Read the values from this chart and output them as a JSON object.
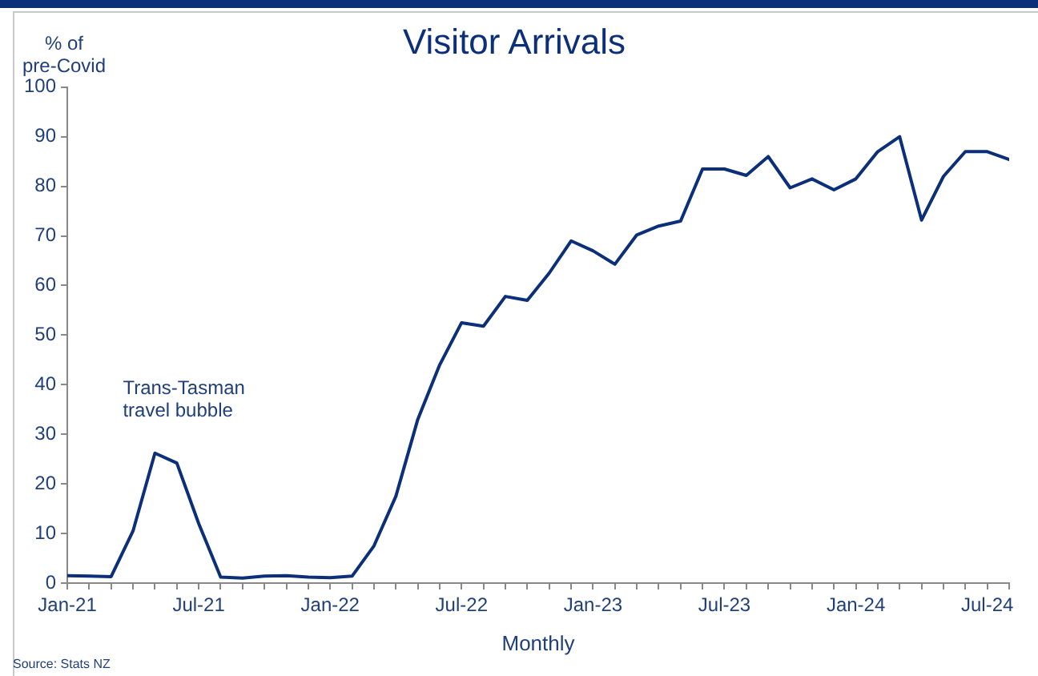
{
  "chart_data": {
    "type": "line",
    "title": "Visitor Arrivals",
    "ylabel": "% of pre-Covid",
    "xlabel": "Monthly",
    "x": [
      "2021-01",
      "2021-02",
      "2021-03",
      "2021-04",
      "2021-05",
      "2021-06",
      "2021-07",
      "2021-08",
      "2021-09",
      "2021-10",
      "2021-11",
      "2021-12",
      "2022-01",
      "2022-02",
      "2022-03",
      "2022-04",
      "2022-05",
      "2022-06",
      "2022-07",
      "2022-08",
      "2022-09",
      "2022-10",
      "2022-11",
      "2022-12",
      "2023-01",
      "2023-02",
      "2023-03",
      "2023-04",
      "2023-05",
      "2023-06",
      "2023-07",
      "2023-08",
      "2023-09",
      "2023-10",
      "2023-11",
      "2023-12",
      "2024-01",
      "2024-02",
      "2024-03",
      "2024-04",
      "2024-05",
      "2024-06",
      "2024-07",
      "2024-08"
    ],
    "series": [
      {
        "color": "#0b2f78",
        "values": [
          1.5,
          1.4,
          1.3,
          10.5,
          26.2,
          24.2,
          12,
          1.2,
          1.0,
          1.4,
          1.5,
          1.2,
          1.1,
          1.4,
          7.5,
          17.5,
          33,
          44,
          52.5,
          51.8,
          57.8,
          57,
          62.5,
          69,
          67,
          64.3,
          70.2,
          72,
          73,
          83.5,
          83.5,
          82.2,
          86,
          79.7,
          81.5,
          79.3,
          81.5,
          87,
          90,
          73.2,
          82,
          87,
          87,
          85.4
        ]
      }
    ],
    "xlim": [
      "2021-01",
      "2024-08"
    ],
    "xticks": [
      {
        "value": "2021-01",
        "label": "Jan-21"
      },
      {
        "value": "2021-02",
        "label": null
      },
      {
        "value": "2021-03",
        "label": null
      },
      {
        "value": "2021-04",
        "label": null
      },
      {
        "value": "2021-05",
        "label": null
      },
      {
        "value": "2021-06",
        "label": null
      },
      {
        "value": "2021-07",
        "label": "Jul-21"
      },
      {
        "value": "2021-08",
        "label": null
      },
      {
        "value": "2021-09",
        "label": null
      },
      {
        "value": "2021-10",
        "label": null
      },
      {
        "value": "2021-11",
        "label": null
      },
      {
        "value": "2021-12",
        "label": null
      },
      {
        "value": "2022-01",
        "label": "Jan-22"
      },
      {
        "value": "2022-02",
        "label": null
      },
      {
        "value": "2022-03",
        "label": null
      },
      {
        "value": "2022-04",
        "label": null
      },
      {
        "value": "2022-05",
        "label": null
      },
      {
        "value": "2022-06",
        "label": null
      },
      {
        "value": "2022-07",
        "label": "Jul-22"
      },
      {
        "value": "2022-08",
        "label": null
      },
      {
        "value": "2022-09",
        "label": null
      },
      {
        "value": "2022-10",
        "label": null
      },
      {
        "value": "2022-11",
        "label": null
      },
      {
        "value": "2022-12",
        "label": null
      },
      {
        "value": "2023-01",
        "label": "Jan-23"
      },
      {
        "value": "2023-02",
        "label": null
      },
      {
        "value": "2023-03",
        "label": null
      },
      {
        "value": "2023-04",
        "label": null
      },
      {
        "value": "2023-05",
        "label": null
      },
      {
        "value": "2023-06",
        "label": null
      },
      {
        "value": "2023-07",
        "label": "Jul-23"
      },
      {
        "value": "2023-08",
        "label": null
      },
      {
        "value": "2023-09",
        "label": null
      },
      {
        "value": "2023-10",
        "label": null
      },
      {
        "value": "2023-11",
        "label": null
      },
      {
        "value": "2023-12",
        "label": null
      },
      {
        "value": "2024-01",
        "label": "Jan-24"
      },
      {
        "value": "2024-02",
        "label": null
      },
      {
        "value": "2024-03",
        "label": null
      },
      {
        "value": "2024-04",
        "label": null
      },
      {
        "value": "2024-05",
        "label": null
      },
      {
        "value": "2024-06",
        "label": null
      },
      {
        "value": "2024-07",
        "label": "Jul-24"
      },
      {
        "value": "2024-08",
        "label": null
      }
    ],
    "ylim": [
      0,
      100
    ],
    "yticks": [
      0,
      10,
      20,
      30,
      40,
      50,
      60,
      70,
      80,
      90,
      100
    ],
    "grid": false,
    "legend": false,
    "marker": "none",
    "line_style": "solid",
    "annotations": [
      {
        "text": "Trans-Tasman travel bubble",
        "x": "2021-05",
        "y": 26.2
      },
      "Source: Stats NZ"
    ]
  }
}
